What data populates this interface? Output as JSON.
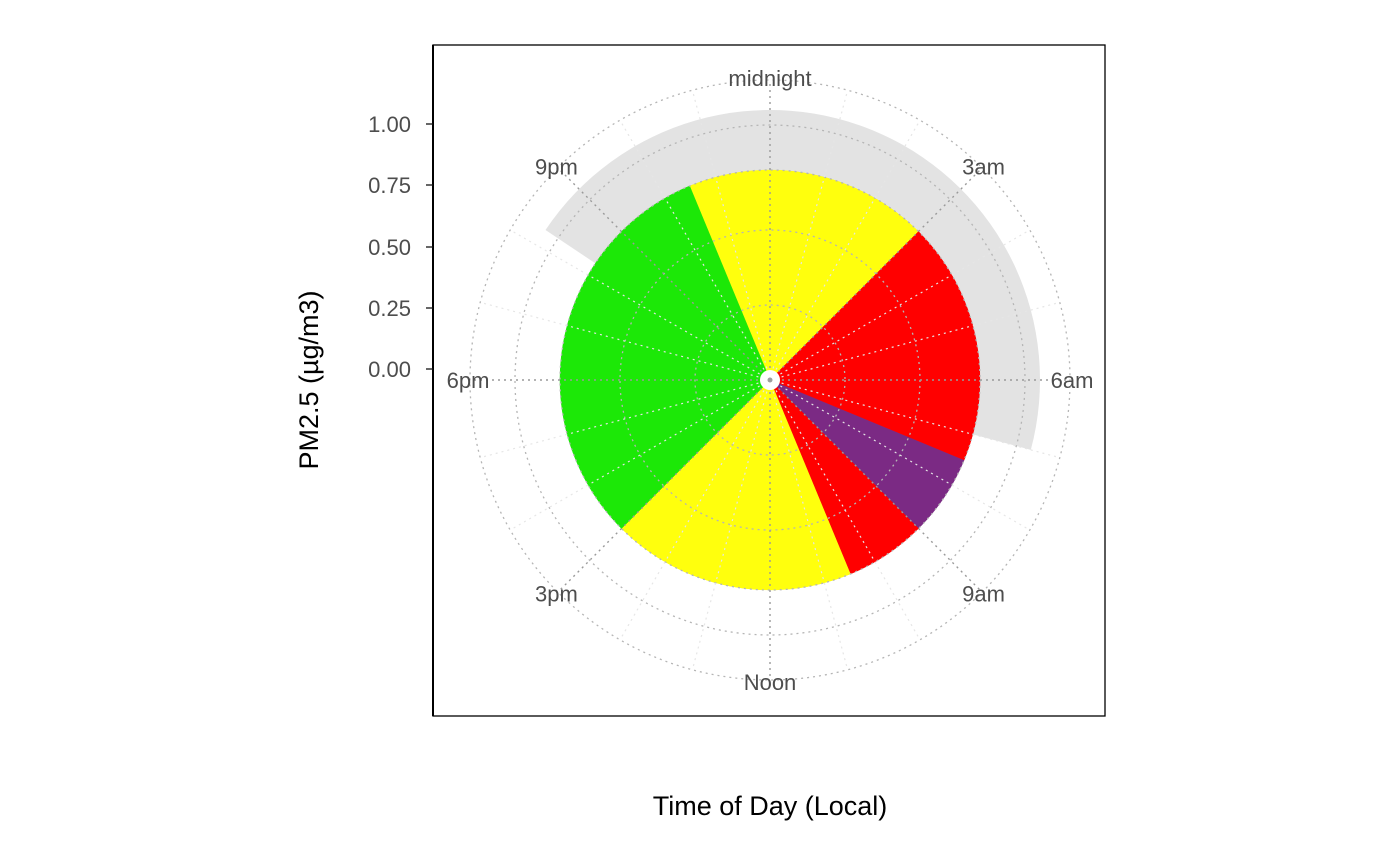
{
  "chart_data": {
    "type": "pie",
    "subtype": "polar-clock",
    "xlabel": "Time of Day (Local)",
    "ylabel": "PM2.5 (µg/m3)",
    "y_ticks": [
      "1.00",
      "0.75",
      "0.50",
      "0.25",
      "0.00"
    ],
    "ylim": [
      0,
      1
    ],
    "hour_labels": [
      {
        "hour": 0,
        "label": "midnight"
      },
      {
        "hour": 3,
        "label": "3am"
      },
      {
        "hour": 6,
        "label": "6am"
      },
      {
        "hour": 9,
        "label": "9am"
      },
      {
        "hour": 12,
        "label": "Noon"
      },
      {
        "hour": 15,
        "label": "3pm"
      },
      {
        "hour": 18,
        "label": "6pm"
      },
      {
        "hour": 21,
        "label": "9pm"
      }
    ],
    "segments": [
      {
        "start_hour": 22.5,
        "end_hour": 3.0,
        "color": "#FFFF0D"
      },
      {
        "start_hour": 3.0,
        "end_hour": 7.5,
        "color": "#FF0000"
      },
      {
        "start_hour": 7.5,
        "end_hour": 9.0,
        "color": "#7B2A84"
      },
      {
        "start_hour": 9.0,
        "end_hour": 10.5,
        "color": "#FF0000"
      },
      {
        "start_hour": 10.5,
        "end_hour": 15.0,
        "color": "#FFFF0D"
      },
      {
        "start_hour": 15.0,
        "end_hour": 22.5,
        "color": "#1CE807"
      }
    ],
    "missing_band": {
      "start_hour": 20.25,
      "end_hour": 7.0,
      "color": "#E3E3E3"
    },
    "grid": true,
    "grid_style": "dotted"
  }
}
